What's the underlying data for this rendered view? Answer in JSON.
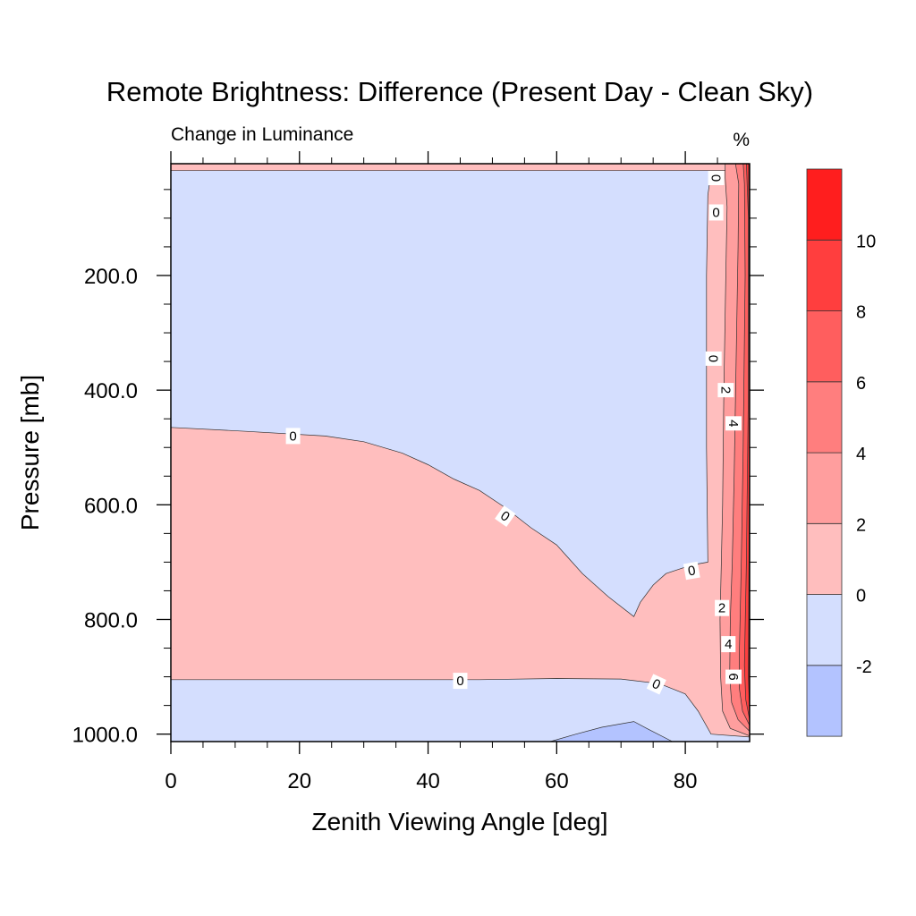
{
  "chart_data": {
    "type": "contour",
    "title": "Remote Brightness: Difference (Present Day - Clean Sky)",
    "subtitle_left": "Change in Luminance",
    "units": "%",
    "xlabel": "Zenith Viewing Angle [deg]",
    "ylabel": "Pressure [mb]",
    "xlim": [
      0,
      90
    ],
    "ylim": [
      1013,
      5
    ],
    "y_inverted": true,
    "x_ticks": [
      {
        "value": 0,
        "label": "0"
      },
      {
        "value": 20,
        "label": "20"
      },
      {
        "value": 40,
        "label": "40"
      },
      {
        "value": 60,
        "label": "60"
      },
      {
        "value": 80,
        "label": "80"
      }
    ],
    "y_ticks": [
      {
        "value": 200,
        "label": "200.0"
      },
      {
        "value": 400,
        "label": "400.0"
      },
      {
        "value": 600,
        "label": "600.0"
      },
      {
        "value": 800,
        "label": "800.0"
      },
      {
        "value": 1000,
        "label": "1000.0"
      }
    ],
    "colorbar": {
      "levels": [
        -2,
        0,
        2,
        4,
        6,
        8,
        10
      ],
      "labels": [
        "10",
        "8",
        "6",
        "4",
        "2",
        "0",
        "-2"
      ],
      "bins": [
        {
          "range": "< -2",
          "color": "#b3c3ff"
        },
        {
          "range": "-2 to 0",
          "color": "#d4defe"
        },
        {
          "range": "0 to 2",
          "color": "#ffbebe"
        },
        {
          "range": "2 to 4",
          "color": "#ff9e9e"
        },
        {
          "range": "4 to 6",
          "color": "#ff7e7e"
        },
        {
          "range": "6 to 8",
          "color": "#ff5e5e"
        },
        {
          "range": "8 to 10",
          "color": "#ff3e3e"
        },
        {
          "range": "> 10",
          "color": "#ff1e1e"
        }
      ]
    },
    "regions": [
      {
        "level": "-2 to 0",
        "color": "#d4defe",
        "points": [
          [
            0,
            5
          ],
          [
            90,
            5
          ],
          [
            90,
            1013
          ],
          [
            0,
            1013
          ]
        ]
      },
      {
        "level": "0 to 2",
        "color": "#ffbebe",
        "points": [
          [
            0,
            5
          ],
          [
            84,
            5
          ],
          [
            84,
            20
          ],
          [
            83.5,
            60
          ],
          [
            83.3,
            200
          ],
          [
            83.3,
            500
          ],
          [
            83.5,
            700
          ],
          [
            81,
            705
          ],
          [
            77,
            720
          ],
          [
            75,
            740
          ],
          [
            73,
            770
          ],
          [
            72,
            795
          ],
          [
            68,
            760
          ],
          [
            64,
            720
          ],
          [
            60,
            670
          ],
          [
            56,
            640
          ],
          [
            52,
            605
          ],
          [
            48,
            575
          ],
          [
            44,
            555
          ],
          [
            40,
            530
          ],
          [
            36,
            510
          ],
          [
            30,
            490
          ],
          [
            24,
            480
          ],
          [
            12,
            472
          ],
          [
            0,
            465
          ],
          [
            0,
            905
          ],
          [
            40,
            905
          ],
          [
            48,
            905
          ],
          [
            60,
            903
          ],
          [
            70,
            904
          ],
          [
            76,
            912
          ],
          [
            80,
            930
          ],
          [
            82,
            960
          ],
          [
            84,
            1000
          ],
          [
            90,
            1005
          ],
          [
            90,
            5
          ]
        ]
      },
      {
        "level": "0 to 2",
        "color": "#ffbebe",
        "points": [
          [
            0,
            5
          ],
          [
            90,
            5
          ],
          [
            90,
            17
          ],
          [
            0,
            17
          ]
        ]
      },
      {
        "level": "2 to 4",
        "color": "#ff9e9e",
        "points": [
          [
            86.2,
            5
          ],
          [
            90,
            5
          ],
          [
            90,
            1003
          ],
          [
            87,
            990
          ],
          [
            85.8,
            960
          ],
          [
            85.5,
            900
          ],
          [
            85.4,
            800
          ],
          [
            85.6,
            700
          ],
          [
            85.8,
            600
          ],
          [
            86.0,
            400
          ],
          [
            86.3,
            200
          ],
          [
            86.5,
            80
          ],
          [
            86.2,
            30
          ]
        ]
      },
      {
        "level": "4 to 6",
        "color": "#ff7e7e",
        "points": [
          [
            87.8,
            5
          ],
          [
            90,
            5
          ],
          [
            90,
            995
          ],
          [
            88.2,
            975
          ],
          [
            87.2,
            945
          ],
          [
            86.9,
            900
          ],
          [
            87.0,
            800
          ],
          [
            87.3,
            700
          ],
          [
            87.6,
            550
          ],
          [
            87.9,
            350
          ],
          [
            88.2,
            150
          ],
          [
            88.3,
            40
          ]
        ]
      },
      {
        "level": "6 to 8",
        "color": "#ff5e5e",
        "points": [
          [
            89.0,
            5
          ],
          [
            90,
            5
          ],
          [
            90,
            985
          ],
          [
            88.9,
            960
          ],
          [
            88.4,
            920
          ],
          [
            88.4,
            860
          ],
          [
            88.7,
            700
          ],
          [
            89.0,
            500
          ],
          [
            89.3,
            200
          ],
          [
            89.2,
            40
          ]
        ]
      },
      {
        "level": "8 to 10",
        "color": "#ff3e3e",
        "points": [
          [
            89.5,
            5
          ],
          [
            90,
            5
          ],
          [
            90,
            975
          ],
          [
            89.4,
            940
          ],
          [
            89.2,
            880
          ],
          [
            89.5,
            700
          ],
          [
            89.8,
            400
          ],
          [
            89.8,
            100
          ]
        ]
      },
      {
        "level": "> 10",
        "color": "#ff1e1e",
        "points": [
          [
            89.85,
            5
          ],
          [
            90,
            5
          ],
          [
            90,
            960
          ],
          [
            89.8,
            900
          ],
          [
            89.9,
            700
          ],
          [
            90,
            500
          ]
        ]
      },
      {
        "level": "< -2",
        "color": "#b3c3ff",
        "points": [
          [
            59,
            1013
          ],
          [
            63,
            1000
          ],
          [
            67,
            988
          ],
          [
            72,
            978
          ],
          [
            74,
            990
          ],
          [
            78,
            1013
          ]
        ]
      }
    ],
    "contour_labels": [
      {
        "x": 19,
        "y": 480,
        "text": "0",
        "rotate": 0
      },
      {
        "x": 52,
        "y": 620,
        "text": "0",
        "rotate": 35
      },
      {
        "x": 81,
        "y": 715,
        "text": "0",
        "rotate": -10
      },
      {
        "x": 45,
        "y": 907,
        "text": "0",
        "rotate": 0
      },
      {
        "x": 75.5,
        "y": 913,
        "text": "0",
        "rotate": 25
      },
      {
        "x": 84.8,
        "y": 30,
        "text": "0",
        "rotate": 90
      },
      {
        "x": 84.8,
        "y": 90,
        "text": "0",
        "rotate": 0
      },
      {
        "x": 84.4,
        "y": 345,
        "text": "0",
        "rotate": 90
      },
      {
        "x": 86.3,
        "y": 400,
        "text": "2",
        "rotate": 90
      },
      {
        "x": 87.5,
        "y": 458,
        "text": "4",
        "rotate": 90
      },
      {
        "x": 85.7,
        "y": 780,
        "text": "2",
        "rotate": 0
      },
      {
        "x": 86.7,
        "y": 843,
        "text": "4",
        "rotate": 0
      },
      {
        "x": 87.5,
        "y": 900,
        "text": "6",
        "rotate": 90
      }
    ]
  }
}
